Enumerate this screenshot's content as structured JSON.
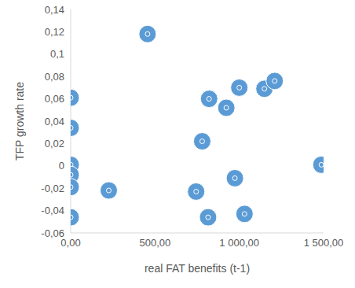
{
  "chart_data": {
    "type": "scatter",
    "x_label": "real FAT benefits (t-1)",
    "y_label": "TFP growth rate",
    "color": "#5b9bd5",
    "marker": "circle",
    "grid": false,
    "x": [
      0,
      0,
      0,
      0,
      0,
      0,
      456,
      226,
      780,
      744,
      821,
      815,
      923,
      974,
      1000,
      1031,
      1149,
      1210,
      1487
    ],
    "values": [
      0.061,
      0.034,
      0.001,
      -0.008,
      -0.019,
      -0.046,
      0.118,
      -0.022,
      0.022,
      -0.023,
      0.06,
      -0.046,
      0.052,
      -0.011,
      0.07,
      -0.043,
      0.069,
      0.076,
      0.001
    ],
    "xlim": [
      0,
      1500
    ],
    "xticks": [
      {
        "value": 0,
        "label": "0,00"
      },
      {
        "value": 500,
        "label": "500,00"
      },
      {
        "value": 1000,
        "label": "1 000,00"
      },
      {
        "value": 1500,
        "label": "1 500,00"
      }
    ],
    "ylim": [
      -0.06,
      0.14
    ],
    "yticks": [
      {
        "value": -0.06,
        "label": "-0,06"
      },
      {
        "value": -0.04,
        "label": "-0,04"
      },
      {
        "value": -0.02,
        "label": "-0,02"
      },
      {
        "value": 0,
        "label": "0"
      },
      {
        "value": 0.02,
        "label": "0,02"
      },
      {
        "value": 0.04,
        "label": "0,04"
      },
      {
        "value": 0.06,
        "label": "0,06"
      },
      {
        "value": 0.08,
        "label": "0,08"
      },
      {
        "value": 0.1,
        "label": "0,1"
      },
      {
        "value": 0.12,
        "label": "0,12"
      },
      {
        "value": 0.14,
        "label": "0,14"
      }
    ]
  }
}
